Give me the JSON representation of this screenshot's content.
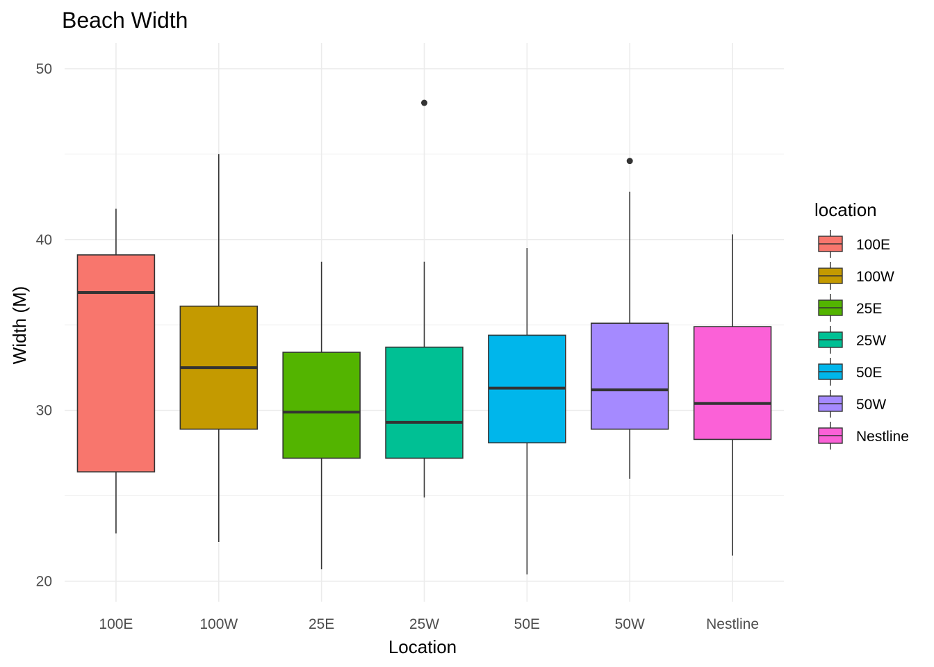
{
  "chart_data": {
    "type": "boxplot",
    "title": "Beach Width",
    "xlabel": "Location",
    "ylabel": "Width (M)",
    "ylim": [
      18.8,
      51.5
    ],
    "y_ticks": [
      20,
      30,
      40,
      50
    ],
    "grid": true,
    "legend": {
      "title": "location",
      "placement": "right"
    },
    "categories": [
      "100E",
      "100W",
      "25E",
      "25W",
      "50E",
      "50W",
      "Nestline"
    ],
    "colors": [
      "#F8766D",
      "#C49A00",
      "#53B400",
      "#00C094",
      "#00B6EB",
      "#A58AFF",
      "#FB61D7"
    ],
    "boxes": [
      {
        "category": "100E",
        "whisker_low": 22.8,
        "q1": 26.4,
        "median": 36.9,
        "q3": 39.1,
        "whisker_high": 41.8,
        "outliers": []
      },
      {
        "category": "100W",
        "whisker_low": 22.3,
        "q1": 28.9,
        "median": 32.5,
        "q3": 36.1,
        "whisker_high": 45.0,
        "outliers": []
      },
      {
        "category": "25E",
        "whisker_low": 20.7,
        "q1": 27.2,
        "median": 29.9,
        "q3": 33.4,
        "whisker_high": 38.7,
        "outliers": []
      },
      {
        "category": "25W",
        "whisker_low": 24.9,
        "q1": 27.2,
        "median": 29.3,
        "q3": 33.7,
        "whisker_high": 38.7,
        "outliers": [
          48.0
        ]
      },
      {
        "category": "50E",
        "whisker_low": 20.4,
        "q1": 28.1,
        "median": 31.3,
        "q3": 34.4,
        "whisker_high": 39.5,
        "outliers": []
      },
      {
        "category": "50W",
        "whisker_low": 26.0,
        "q1": 28.9,
        "median": 31.2,
        "q3": 35.1,
        "whisker_high": 42.8,
        "outliers": [
          44.6
        ]
      },
      {
        "category": "Nestline",
        "whisker_low": 21.5,
        "q1": 28.3,
        "median": 30.4,
        "q3": 34.9,
        "whisker_high": 40.3,
        "outliers": []
      }
    ]
  }
}
